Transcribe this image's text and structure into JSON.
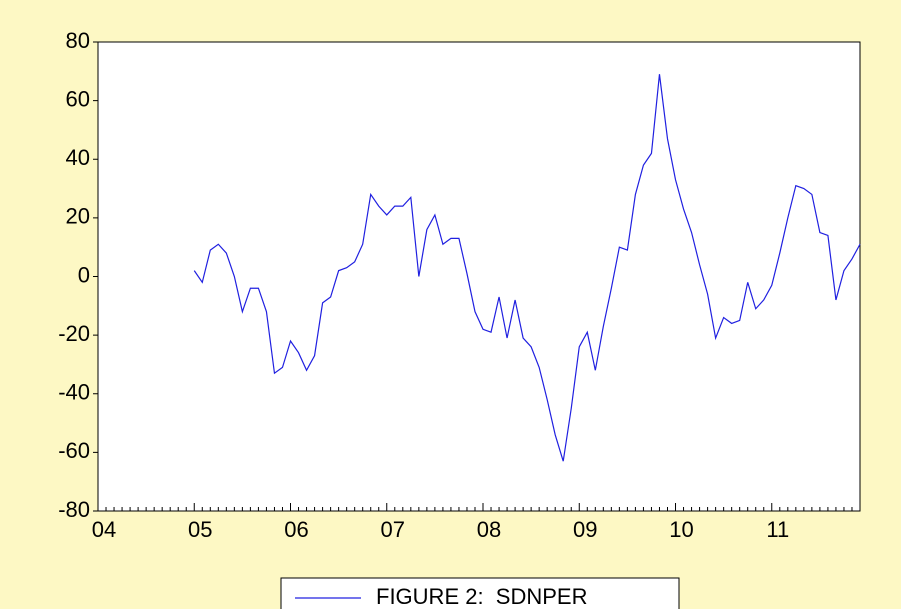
{
  "chart_data": {
    "type": "line",
    "categories": [
      "04",
      null,
      null,
      null,
      null,
      null,
      null,
      null,
      null,
      null,
      null,
      null,
      "05",
      null,
      null,
      null,
      null,
      null,
      null,
      null,
      null,
      null,
      null,
      null,
      "06",
      null,
      null,
      null,
      null,
      null,
      null,
      null,
      null,
      null,
      null,
      null,
      "07",
      null,
      null,
      null,
      null,
      null,
      null,
      null,
      null,
      null,
      null,
      null,
      "08",
      null,
      null,
      null,
      null,
      null,
      null,
      null,
      null,
      null,
      null,
      null,
      "09",
      null,
      null,
      null,
      null,
      null,
      null,
      null,
      null,
      null,
      null,
      null,
      "10",
      null,
      null,
      null,
      null,
      null,
      null,
      null,
      null,
      null,
      null,
      null,
      "11",
      null,
      null,
      null,
      null,
      null,
      null,
      null,
      null,
      null,
      null,
      null
    ],
    "series": [
      {
        "name": "FIGURE 2:  SDNPER",
        "color": "#2020e0",
        "values": [
          null,
          null,
          null,
          null,
          null,
          null,
          null,
          null,
          null,
          null,
          null,
          null,
          2,
          -2,
          9,
          11,
          8,
          0,
          -12,
          -4,
          -4,
          -12,
          -33,
          -31,
          -22,
          -26,
          -32,
          -27,
          -9,
          -7,
          2,
          3,
          5,
          11,
          28,
          24,
          21,
          24,
          24,
          27,
          0,
          16,
          21,
          11,
          13,
          13,
          1,
          -12,
          -18,
          -19,
          -7,
          -21,
          -8,
          -21,
          -24,
          -31,
          -42,
          -54,
          -63,
          -45,
          -24,
          -19,
          -32,
          -17,
          -4,
          10,
          9,
          28,
          38,
          42,
          69,
          47,
          33,
          23,
          15,
          4,
          -6,
          -21,
          -14,
          -16,
          -15,
          -2,
          -11,
          -8,
          -3,
          8,
          20,
          31,
          30,
          28,
          15,
          14,
          -8,
          2,
          6,
          11
        ]
      }
    ],
    "ylim": [
      -80,
      80
    ],
    "yticks": [
      -80,
      -60,
      -40,
      -20,
      0,
      20,
      40,
      60,
      80
    ],
    "grid": false
  }
}
